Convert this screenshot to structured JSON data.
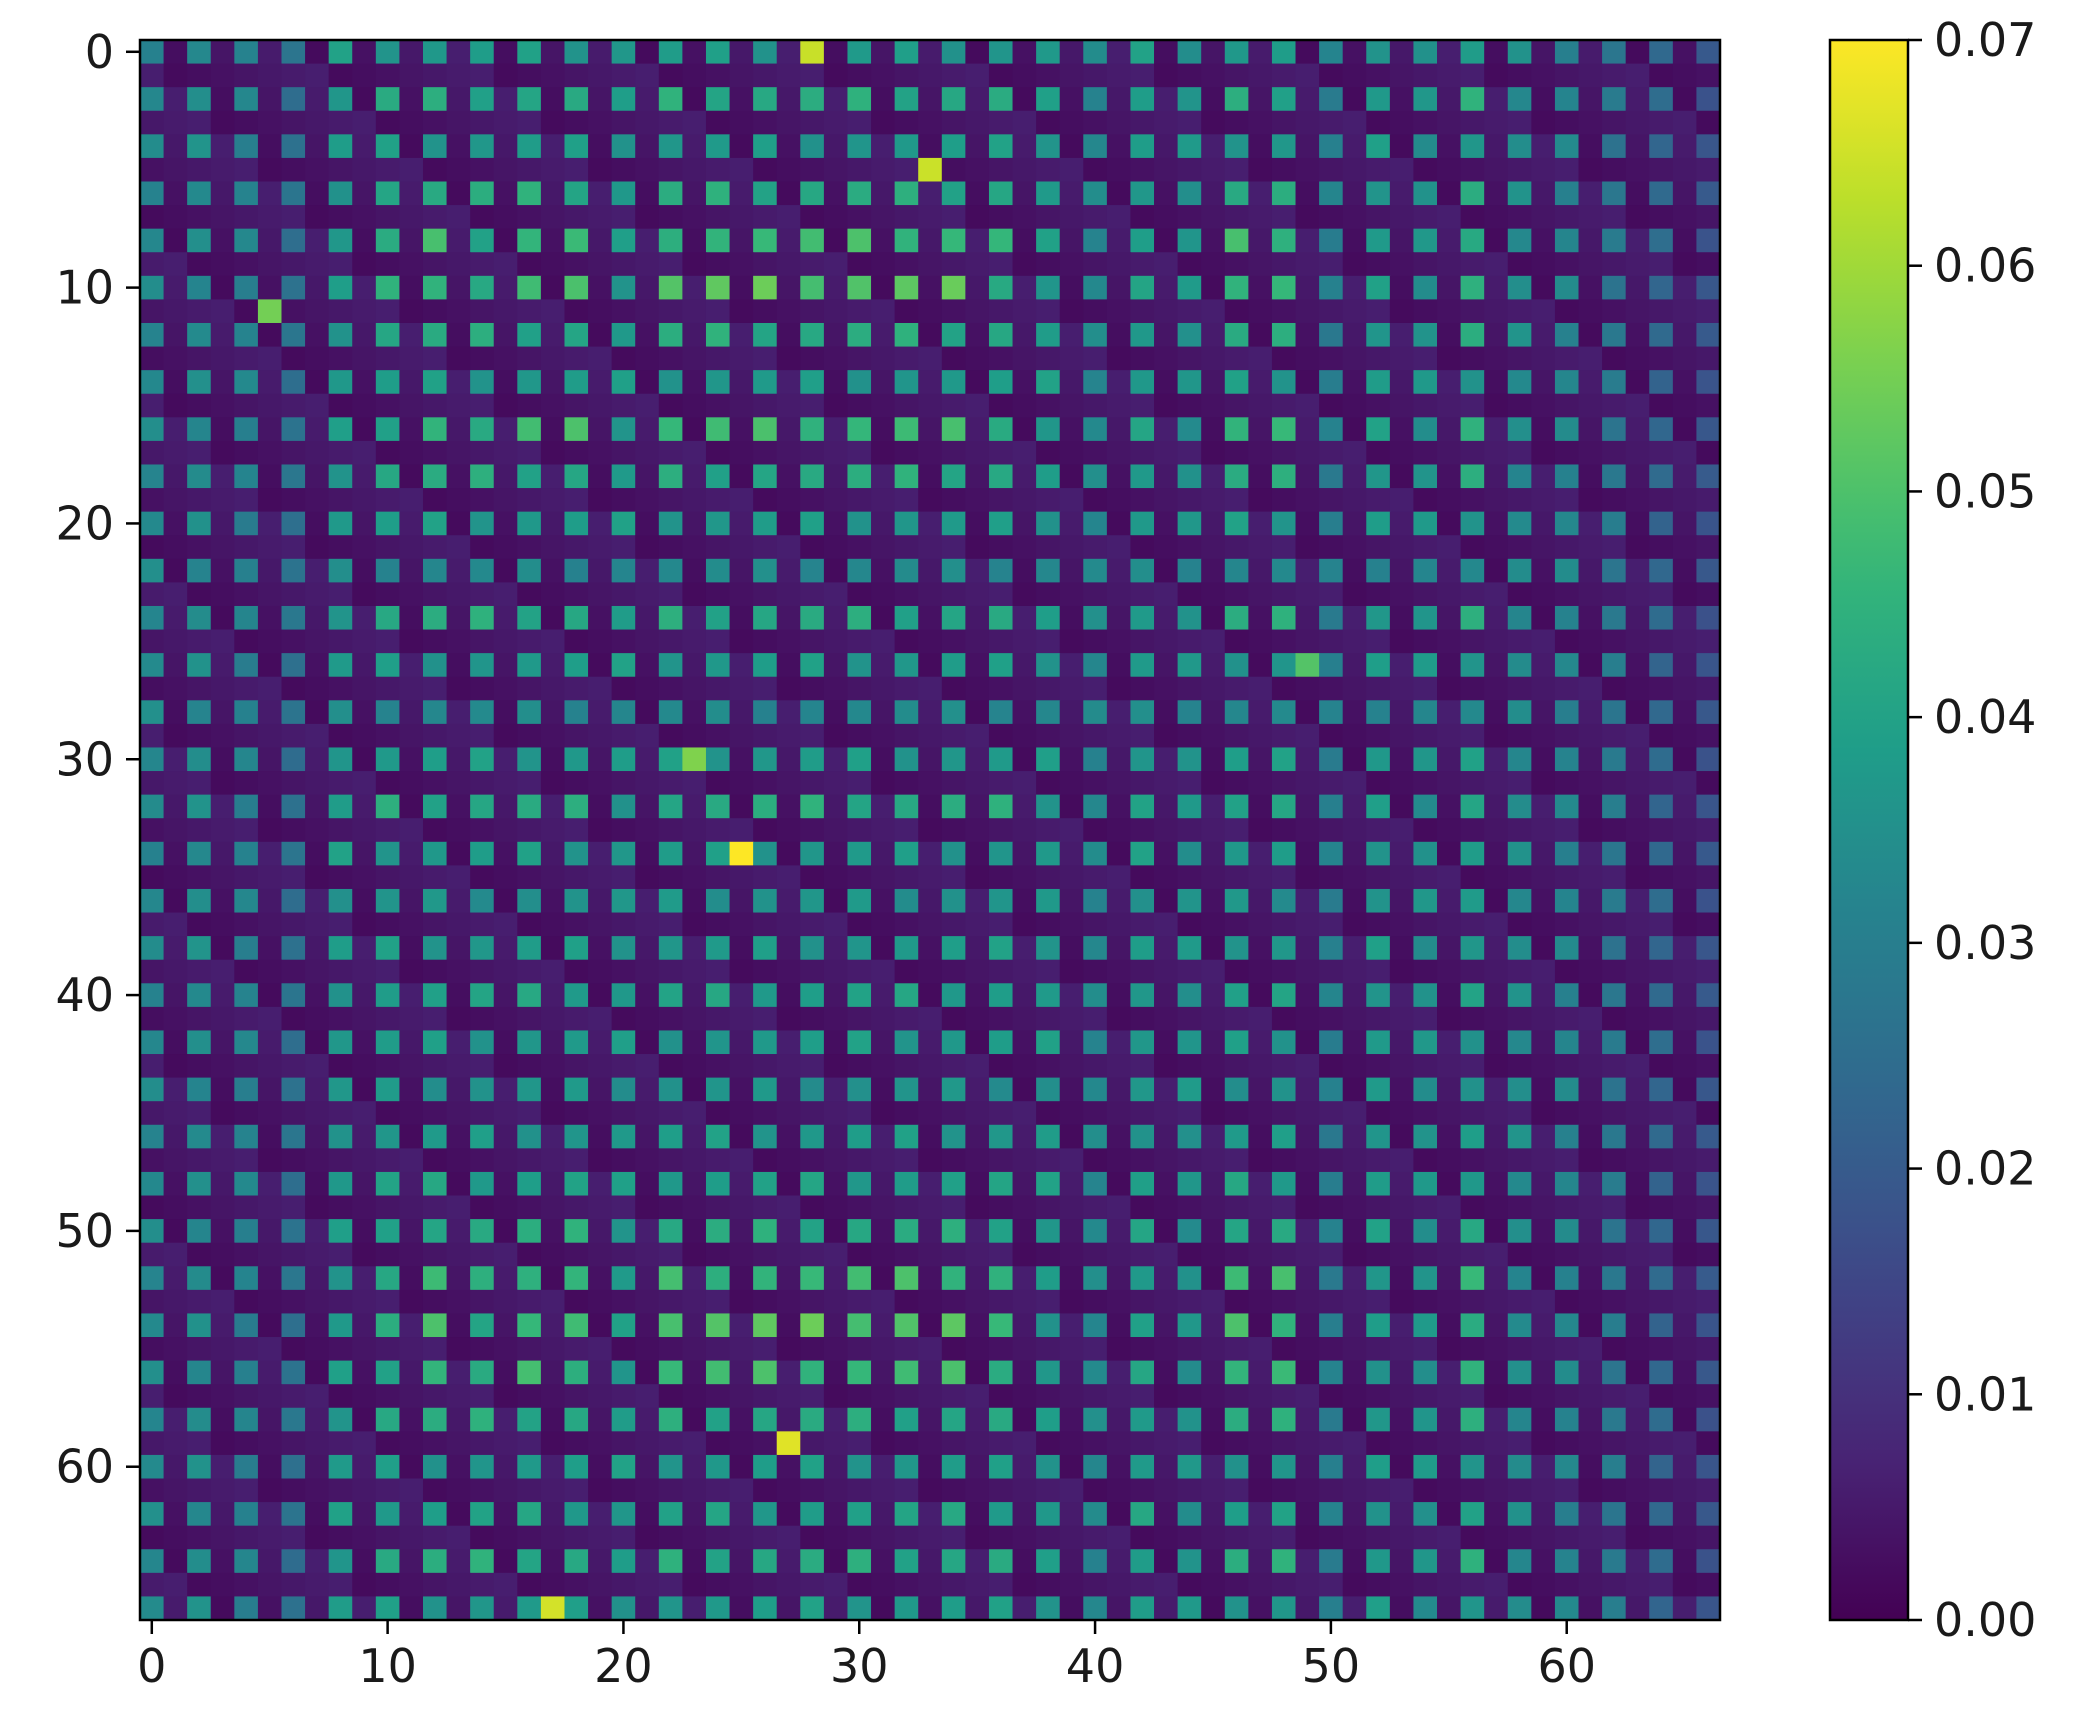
{
  "chart_data": {
    "type": "heatmap",
    "title": "",
    "xlabel": "",
    "ylabel": "",
    "n_rows": 67,
    "n_cols": 67,
    "xlim": [
      -0.5,
      66.5
    ],
    "ylim": [
      66.5,
      -0.5
    ],
    "x_ticks": [
      0,
      10,
      20,
      30,
      40,
      50,
      60
    ],
    "y_ticks": [
      0,
      10,
      20,
      30,
      40,
      50,
      60
    ],
    "x_tick_labels": [
      "0",
      "10",
      "20",
      "30",
      "40",
      "50",
      "60"
    ],
    "y_tick_labels": [
      "0",
      "10",
      "20",
      "30",
      "40",
      "50",
      "60"
    ],
    "colormap": "viridis",
    "colorbar": {
      "vmin": 0.0,
      "vmax": 0.07,
      "ticks": [
        0.0,
        0.01,
        0.02,
        0.03,
        0.04,
        0.05,
        0.06,
        0.07
      ],
      "tick_labels": [
        "0.00",
        "0.01",
        "0.02",
        "0.03",
        "0.04",
        "0.05",
        "0.06",
        "0.07"
      ]
    },
    "grid": false,
    "pattern": "even-indexed rows and columns are near 0.00; values approximated as min(row weight, column weight)",
    "column_weights": [
      0.035,
      0.0,
      0.036,
      0.0,
      0.033,
      0.0,
      0.028,
      0.0,
      0.04,
      0.0,
      0.045,
      0.0,
      0.05,
      0.0,
      0.045,
      0.0,
      0.05,
      0.0,
      0.05,
      0.0,
      0.04,
      0.0,
      0.055,
      0.0,
      0.058,
      0.0,
      0.062,
      0.0,
      0.07,
      0.0,
      0.062,
      0.0,
      0.066,
      0.0,
      0.06,
      0.0,
      0.048,
      0.0,
      0.04,
      0.0,
      0.035,
      0.0,
      0.042,
      0.0,
      0.038,
      0.0,
      0.05,
      0.0,
      0.05,
      0.0,
      0.032,
      0.0,
      0.04,
      0.0,
      0.038,
      0.0,
      0.048,
      0.0,
      0.036,
      0.0,
      0.034,
      0.0,
      0.03,
      0.0,
      0.025,
      0.0,
      0.02
    ],
    "row_weights": [
      0.04,
      0.0,
      0.045,
      0.0,
      0.04,
      0.0,
      0.045,
      0.0,
      0.05,
      0.0,
      0.055,
      0.0,
      0.045,
      0.0,
      0.04,
      0.0,
      0.05,
      0.0,
      0.045,
      0.0,
      0.04,
      0.0,
      0.035,
      0.0,
      0.045,
      0.0,
      0.04,
      0.0,
      0.035,
      0.0,
      0.04,
      0.0,
      0.045,
      0.0,
      0.04,
      0.0,
      0.038,
      0.0,
      0.04,
      0.0,
      0.042,
      0.0,
      0.04,
      0.0,
      0.038,
      0.0,
      0.04,
      0.0,
      0.042,
      0.0,
      0.045,
      0.0,
      0.05,
      0.0,
      0.055,
      0.0,
      0.05,
      0.0,
      0.045,
      0.0,
      0.04,
      0.0,
      0.042,
      0.0,
      0.045,
      0.0,
      0.04
    ],
    "hotspots": [
      {
        "row": 0,
        "col": 28,
        "value": 0.07
      },
      {
        "row": 34,
        "col": 25,
        "value": 0.07
      },
      {
        "row": 59,
        "col": 27,
        "value": 0.07
      },
      {
        "row": 66,
        "col": 17,
        "value": 0.068
      },
      {
        "row": 5,
        "col": 33,
        "value": 0.066
      },
      {
        "row": 11,
        "col": 5,
        "value": 0.058
      },
      {
        "row": 30,
        "col": 23,
        "value": 0.064
      },
      {
        "row": 26,
        "col": 49,
        "value": 0.055
      }
    ]
  }
}
